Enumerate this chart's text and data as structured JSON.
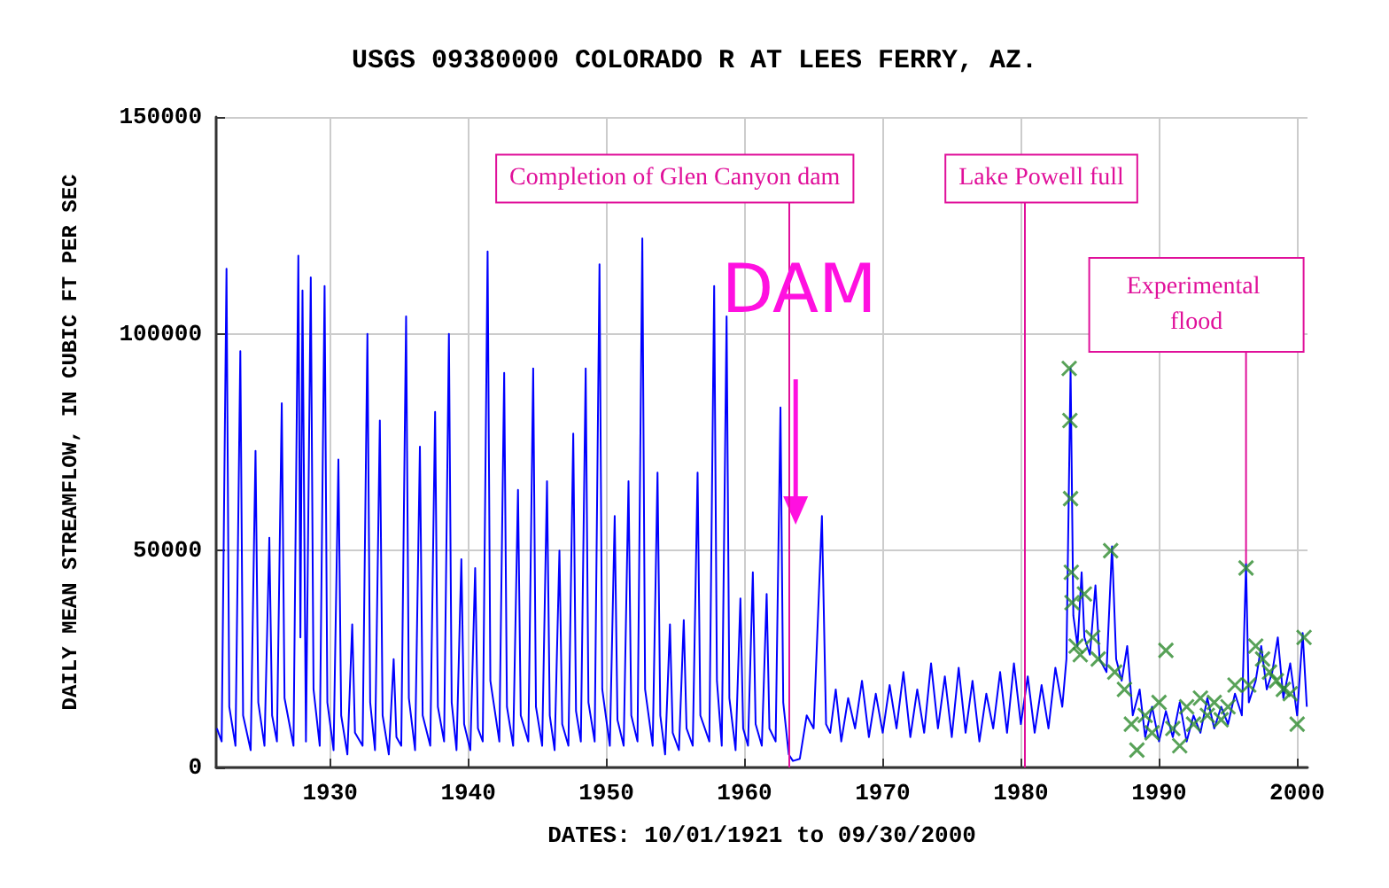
{
  "chart_data": {
    "type": "line",
    "title": "USGS 09380000 COLORADO R AT LEES FERRY, AZ.",
    "xlabel": "DATES: 10/01/1921 to 09/30/2000",
    "ylabel": "DAILY MEAN STREAMFLOW, IN CUBIC FT PER SEC",
    "xlim": [
      1921.75,
      2000.75
    ],
    "xticks": [
      1930,
      1940,
      1950,
      1960,
      1970,
      1980,
      1990,
      2000
    ],
    "ylim": [
      0,
      150000
    ],
    "yticks": [
      0,
      50000,
      100000,
      150000
    ],
    "grid": true,
    "series": [
      {
        "color": "#0000ff",
        "marker": "none",
        "x": [
          1921.8,
          1922.15,
          1922.5,
          1922.7,
          1923.15,
          1923.5,
          1923.7,
          1924.25,
          1924.6,
          1924.8,
          1925.25,
          1925.6,
          1925.8,
          1926.15,
          1926.5,
          1926.7,
          1927.35,
          1927.7,
          1927.85,
          1928.0,
          1928.25,
          1928.6,
          1928.8,
          1929.25,
          1929.6,
          1929.8,
          1930.25,
          1930.6,
          1930.8,
          1931.25,
          1931.6,
          1931.8,
          1932.35,
          1932.7,
          1932.9,
          1933.25,
          1933.6,
          1933.8,
          1934.25,
          1934.6,
          1934.8,
          1935.15,
          1935.5,
          1935.7,
          1936.15,
          1936.5,
          1936.7,
          1937.25,
          1937.6,
          1937.8,
          1938.25,
          1938.6,
          1938.8,
          1939.15,
          1939.5,
          1939.7,
          1940.15,
          1940.5,
          1940.7,
          1941.05,
          1941.4,
          1941.6,
          1942.25,
          1942.6,
          1942.8,
          1943.25,
          1943.6,
          1943.8,
          1944.35,
          1944.7,
          1944.9,
          1945.35,
          1945.7,
          1945.9,
          1946.25,
          1946.6,
          1946.8,
          1947.25,
          1947.6,
          1947.8,
          1948.15,
          1948.5,
          1948.7,
          1949.15,
          1949.5,
          1949.7,
          1950.25,
          1950.6,
          1950.8,
          1951.25,
          1951.6,
          1951.8,
          1952.25,
          1952.6,
          1952.8,
          1953.35,
          1953.7,
          1953.9,
          1954.25,
          1954.6,
          1954.8,
          1955.25,
          1955.6,
          1955.8,
          1956.25,
          1956.6,
          1956.8,
          1957.45,
          1957.8,
          1958.0,
          1958.35,
          1958.7,
          1958.9,
          1959.35,
          1959.7,
          1959.9,
          1960.25,
          1960.6,
          1960.8,
          1961.25,
          1961.6,
          1961.8,
          1962.25,
          1962.6,
          1962.8,
          1963.2,
          1963.5,
          1964.0,
          1964.5,
          1965.0,
          1965.6,
          1965.9,
          1966.2,
          1966.6,
          1967.0,
          1967.5,
          1968.0,
          1968.5,
          1969.0,
          1969.5,
          1970.0,
          1970.5,
          1971.0,
          1971.5,
          1972.0,
          1972.5,
          1973.0,
          1973.5,
          1974.0,
          1974.5,
          1975.0,
          1975.5,
          1976.0,
          1976.5,
          1977.0,
          1977.5,
          1978.0,
          1978.5,
          1979.0,
          1979.5,
          1980.0,
          1980.5,
          1981.0,
          1981.5,
          1982.0,
          1982.5,
          1983.0,
          1983.3,
          1983.6,
          1983.8,
          1984.1,
          1984.4,
          1984.6,
          1985.0,
          1985.4,
          1985.7,
          1986.2,
          1986.6,
          1986.9,
          1987.3,
          1987.7,
          1988.1,
          1988.6,
          1989.0,
          1989.5,
          1990.0,
          1990.5,
          1991.0,
          1991.5,
          1992.0,
          1992.5,
          1993.0,
          1993.5,
          1994.0,
          1994.5,
          1995.0,
          1995.5,
          1996.0,
          1996.3,
          1996.5,
          1997.0,
          1997.4,
          1997.8,
          1998.2,
          1998.6,
          1999.0,
          1999.5,
          2000.0,
          2000.4,
          2000.7
        ],
        "values": [
          9000,
          6000,
          115000,
          14000,
          5000,
          96000,
          12000,
          4000,
          73000,
          15000,
          5000,
          53000,
          12000,
          6000,
          84000,
          16000,
          5000,
          118000,
          30000,
          110000,
          6000,
          113000,
          18000,
          5000,
          111000,
          15000,
          4000,
          71000,
          12000,
          3000,
          33000,
          8000,
          5000,
          100000,
          15000,
          4000,
          80000,
          12000,
          3000,
          25000,
          7000,
          5000,
          104000,
          16000,
          4000,
          74000,
          12000,
          5000,
          82000,
          14000,
          6000,
          100000,
          15000,
          4000,
          48000,
          10000,
          4000,
          46000,
          9000,
          6000,
          119000,
          20000,
          6000,
          91000,
          14000,
          5000,
          64000,
          12000,
          6000,
          92000,
          14000,
          5000,
          66000,
          12000,
          4000,
          50000,
          10000,
          5000,
          77000,
          13000,
          6000,
          92000,
          15000,
          6000,
          116000,
          18000,
          5000,
          58000,
          11000,
          5000,
          66000,
          12000,
          6000,
          122000,
          18000,
          5000,
          68000,
          12000,
          3000,
          33000,
          8000,
          4000,
          34000,
          9000,
          5000,
          68000,
          12000,
          6000,
          111000,
          20000,
          5000,
          104000,
          16000,
          4000,
          39000,
          9000,
          5000,
          45000,
          10000,
          5000,
          40000,
          9000,
          6000,
          83000,
          15000,
          3000,
          1500,
          2000,
          12000,
          9000,
          58000,
          10000,
          8000,
          18000,
          6000,
          16000,
          9000,
          20000,
          7000,
          17000,
          8000,
          19000,
          9000,
          22000,
          7000,
          18000,
          8000,
          24000,
          9000,
          21000,
          7000,
          23000,
          8000,
          20000,
          6000,
          17000,
          9000,
          22000,
          8000,
          24000,
          10000,
          21000,
          8000,
          19000,
          9000,
          23000,
          14000,
          25000,
          92000,
          35000,
          28000,
          45000,
          30000,
          26000,
          42000,
          25000,
          22000,
          51000,
          25000,
          20000,
          28000,
          12000,
          18000,
          7000,
          14000,
          6000,
          13000,
          7000,
          15000,
          6000,
          12000,
          8000,
          16000,
          9000,
          14000,
          10000,
          17000,
          12000,
          47000,
          15000,
          20000,
          28000,
          18000,
          22000,
          30000,
          16000,
          24000,
          12000,
          31000,
          14000
        ]
      },
      {
        "type": "scatter",
        "color": "#2e8b2e",
        "marker": "cross",
        "x": [
          1983.5,
          1983.55,
          1983.6,
          1983.65,
          1983.7,
          1984.0,
          1984.3,
          1984.6,
          1985.2,
          1985.6,
          1986.5,
          1986.8,
          1987.5,
          1988.0,
          1988.4,
          1989.0,
          1989.5,
          1990.0,
          1990.5,
          1991.0,
          1991.5,
          1992.0,
          1992.5,
          1993.0,
          1993.5,
          1994.0,
          1994.5,
          1995.0,
          1995.5,
          1996.3,
          1996.5,
          1997.0,
          1997.5,
          1998.0,
          1998.5,
          1999.0,
          1999.5,
          2000.0,
          2000.5
        ],
        "values": [
          92000,
          80000,
          62000,
          45000,
          38000,
          28000,
          26000,
          40000,
          30000,
          25000,
          50000,
          22000,
          18000,
          10000,
          4000,
          12000,
          8000,
          15000,
          27000,
          9000,
          5000,
          14000,
          10000,
          16000,
          12000,
          15000,
          11000,
          14000,
          19000,
          46000,
          19000,
          28000,
          25000,
          22000,
          20000,
          18000,
          17000,
          10000,
          30000
        ]
      }
    ],
    "ref_lines": [
      {
        "axis": "x",
        "value": 1963.2,
        "label": "Completion of Glen Canyon dam",
        "color": "#e0109a"
      },
      {
        "axis": "x",
        "value": 1980.2,
        "label": "Lake Powell full",
        "color": "#e0109a"
      }
    ],
    "annotations": [
      {
        "text": "DAM",
        "x": 1963.7,
        "y": 56000
      },
      {
        "text": "Experimental flood",
        "x": 1996.3,
        "y": 47000
      }
    ]
  }
}
